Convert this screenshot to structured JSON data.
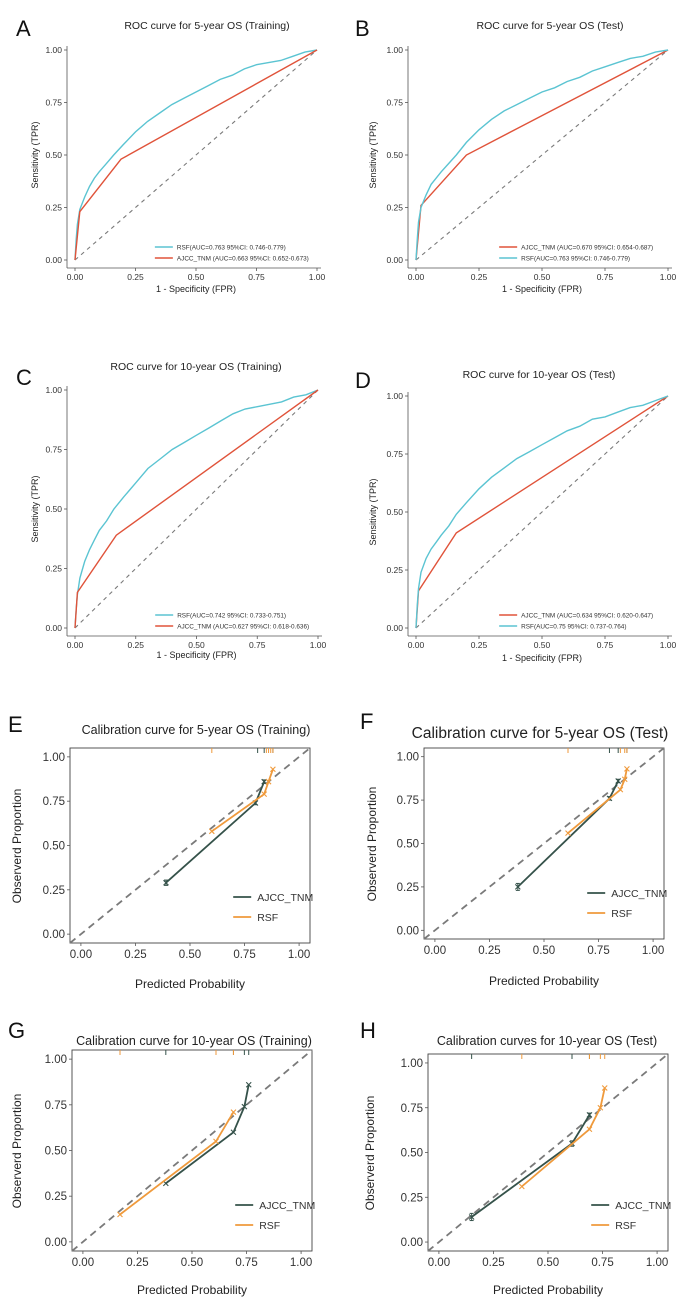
{
  "colors": {
    "rsf_roc": "#5bc4d2",
    "tnm_roc": "#e0533a",
    "tnm_cal": "#35524a",
    "rsf_cal": "#ef9a3c",
    "reference": "#7a7a7a"
  },
  "chart_data": [
    {
      "id": "roc_5_train",
      "panel": "A",
      "type": "line",
      "title": "ROC curve for 5-year OS (Training)",
      "xlabel": "1 - Specificity (FPR)",
      "ylabel": "Sensitivity (TPR)",
      "xlim": [
        0,
        1
      ],
      "ylim": [
        0,
        1
      ],
      "xticks": [
        "0.00",
        "0.25",
        "0.50",
        "0.75",
        "1.00"
      ],
      "yticks": [
        "0.00",
        "0.25",
        "0.50",
        "0.75",
        "1.00"
      ],
      "legend_position": "bottom-right",
      "grid": false,
      "series": [
        {
          "name": "RSF(AUC=0.763 95%CI: 0.746-0.779)",
          "color_key": "rsf_roc",
          "x": [
            0,
            0.005,
            0.01,
            0.02,
            0.04,
            0.06,
            0.08,
            0.1,
            0.13,
            0.16,
            0.2,
            0.25,
            0.3,
            0.35,
            0.4,
            0.45,
            0.5,
            0.55,
            0.6,
            0.65,
            0.7,
            0.75,
            0.8,
            0.85,
            0.9,
            0.95,
            1.0
          ],
          "y": [
            0,
            0.1,
            0.17,
            0.24,
            0.3,
            0.35,
            0.39,
            0.42,
            0.46,
            0.5,
            0.55,
            0.61,
            0.66,
            0.7,
            0.74,
            0.77,
            0.8,
            0.83,
            0.86,
            0.88,
            0.91,
            0.93,
            0.94,
            0.95,
            0.97,
            0.99,
            1.0
          ]
        },
        {
          "name": "AJCC_TNM (AUC=0.663 95%CI: 0.652-0.673)",
          "color_key": "tnm_roc",
          "x": [
            0,
            0.02,
            0.19,
            1.0
          ],
          "y": [
            0,
            0.23,
            0.48,
            1.0
          ]
        }
      ]
    },
    {
      "id": "roc_5_test",
      "panel": "B",
      "type": "line",
      "title": "ROC curve for 5-year OS (Test)",
      "xlabel": "1 - Specificity (FPR)",
      "ylabel": "Sensitivity (TPR)",
      "xlim": [
        0,
        1
      ],
      "ylim": [
        0,
        1
      ],
      "xticks": [
        "0.00",
        "0.25",
        "0.50",
        "0.75",
        "1.00"
      ],
      "yticks": [
        "0.00",
        "0.25",
        "0.50",
        "0.75",
        "1.00"
      ],
      "legend_position": "bottom-right",
      "grid": false,
      "series": [
        {
          "name": "AJCC_TNM (AUC=0.670 95%CI: 0.654-0.687)",
          "color_key": "tnm_roc",
          "x": [
            0,
            0.02,
            0.2,
            1.0
          ],
          "y": [
            0,
            0.26,
            0.5,
            1.0
          ]
        },
        {
          "name": "RSF(AUC=0.763 95%CI: 0.746-0.779)",
          "color_key": "rsf_roc",
          "x": [
            0,
            0.005,
            0.01,
            0.02,
            0.04,
            0.06,
            0.08,
            0.1,
            0.13,
            0.16,
            0.2,
            0.25,
            0.3,
            0.35,
            0.4,
            0.45,
            0.5,
            0.55,
            0.6,
            0.65,
            0.7,
            0.75,
            0.8,
            0.85,
            0.9,
            0.95,
            1.0
          ],
          "y": [
            0,
            0.1,
            0.18,
            0.25,
            0.31,
            0.36,
            0.39,
            0.42,
            0.46,
            0.5,
            0.56,
            0.62,
            0.67,
            0.71,
            0.74,
            0.77,
            0.8,
            0.82,
            0.85,
            0.87,
            0.9,
            0.92,
            0.94,
            0.96,
            0.97,
            0.99,
            1.0
          ]
        }
      ]
    },
    {
      "id": "roc_10_train",
      "panel": "C",
      "type": "line",
      "title": "ROC curve for 10-year OS (Training)",
      "xlabel": "1 - Specificity (FPR)",
      "ylabel": "Sensitivity (TPR)",
      "xlim": [
        0,
        1
      ],
      "ylim": [
        0,
        1
      ],
      "xticks": [
        "0.00",
        "0.25",
        "0.50",
        "0.75",
        "1.00"
      ],
      "yticks": [
        "0.00",
        "0.25",
        "0.50",
        "0.75",
        "1.00"
      ],
      "legend_position": "bottom-right",
      "grid": false,
      "series": [
        {
          "name": "RSF(AUC=0.742 95%CI: 0.733-0.751)",
          "color_key": "rsf_roc",
          "x": [
            0,
            0.005,
            0.01,
            0.02,
            0.04,
            0.06,
            0.08,
            0.1,
            0.13,
            0.16,
            0.2,
            0.25,
            0.3,
            0.35,
            0.4,
            0.45,
            0.5,
            0.55,
            0.6,
            0.65,
            0.7,
            0.75,
            0.8,
            0.85,
            0.9,
            0.95,
            1.0
          ],
          "y": [
            0,
            0.08,
            0.14,
            0.21,
            0.28,
            0.33,
            0.37,
            0.41,
            0.45,
            0.5,
            0.55,
            0.61,
            0.67,
            0.71,
            0.75,
            0.78,
            0.81,
            0.84,
            0.87,
            0.9,
            0.92,
            0.93,
            0.94,
            0.95,
            0.97,
            0.98,
            1.0
          ]
        },
        {
          "name": "AJCC_TNM (AUC=0.627 95%CI: 0.618-0.636)",
          "color_key": "tnm_roc",
          "x": [
            0,
            0.01,
            0.17,
            1.0
          ],
          "y": [
            0,
            0.15,
            0.39,
            1.0
          ]
        }
      ]
    },
    {
      "id": "roc_10_test",
      "panel": "D",
      "type": "line",
      "title": "ROC curve for 10-year OS (Test)",
      "xlabel": "1 - Specificity (FPR)",
      "ylabel": "Sensitivity (TPR)",
      "xlim": [
        0,
        1
      ],
      "ylim": [
        0,
        1
      ],
      "xticks": [
        "0.00",
        "0.25",
        "0.50",
        "0.75",
        "1.00"
      ],
      "yticks": [
        "0.00",
        "0.25",
        "0.50",
        "0.75",
        "1.00"
      ],
      "legend_position": "bottom-right",
      "grid": false,
      "series": [
        {
          "name": "AJCC_TNM (AUC=0.634 95%CI: 0.620-0.647)",
          "color_key": "tnm_roc",
          "x": [
            0,
            0.01,
            0.16,
            1.0
          ],
          "y": [
            0,
            0.16,
            0.41,
            1.0
          ]
        },
        {
          "name": "RSF(AUC=0.75 95%CI: 0.737-0.764)",
          "color_key": "rsf_roc",
          "x": [
            0,
            0.005,
            0.01,
            0.02,
            0.04,
            0.06,
            0.08,
            0.1,
            0.13,
            0.16,
            0.2,
            0.25,
            0.3,
            0.35,
            0.4,
            0.45,
            0.5,
            0.55,
            0.6,
            0.65,
            0.7,
            0.75,
            0.8,
            0.85,
            0.9,
            0.95,
            1.0
          ],
          "y": [
            0,
            0.1,
            0.17,
            0.24,
            0.3,
            0.34,
            0.37,
            0.4,
            0.44,
            0.49,
            0.54,
            0.6,
            0.65,
            0.69,
            0.73,
            0.76,
            0.79,
            0.82,
            0.85,
            0.87,
            0.9,
            0.91,
            0.93,
            0.95,
            0.96,
            0.98,
            1.0
          ]
        }
      ]
    },
    {
      "id": "cal_5_train",
      "panel": "E",
      "type": "line",
      "title": "Calibration curve for 5-year OS (Training)",
      "xlabel": "Predicted Probability",
      "ylabel": "Observerd Proportion",
      "xlim": [
        -0.05,
        1.05
      ],
      "ylim": [
        -0.05,
        1.05
      ],
      "xticks": [
        "0.00",
        "0.25",
        "0.50",
        "0.75",
        "1.00"
      ],
      "yticks": [
        "0.00",
        "0.25",
        "0.50",
        "0.75",
        "1.00"
      ],
      "legend_position": "bottom-right",
      "grid": false,
      "series": [
        {
          "name": "AJCC_TNM",
          "color_key": "tnm_cal",
          "x": [
            0.39,
            0.8,
            0.84
          ],
          "y": [
            0.29,
            0.74,
            0.86
          ],
          "err": [
            0.015,
            0.01,
            0.01
          ],
          "rug": [
            0.81,
            0.84,
            0.88
          ]
        },
        {
          "name": "RSF",
          "color_key": "rsf_cal",
          "x": [
            0.6,
            0.84,
            0.86,
            0.88
          ],
          "y": [
            0.58,
            0.79,
            0.86,
            0.93
          ],
          "rug": [
            0.6,
            0.85,
            0.86,
            0.87,
            0.88
          ]
        }
      ]
    },
    {
      "id": "cal_5_test",
      "panel": "F",
      "type": "line",
      "title": "Calibration curve for 5-year OS (Test)",
      "xlabel": "Predicted Probability",
      "ylabel": "Observerd Proportion",
      "xlim": [
        -0.05,
        1.05
      ],
      "ylim": [
        -0.05,
        1.05
      ],
      "xticks": [
        "0.00",
        "0.25",
        "0.50",
        "0.75",
        "1.00"
      ],
      "yticks": [
        "0.00",
        "0.25",
        "0.50",
        "0.75",
        "1.00"
      ],
      "legend_position": "bottom-right",
      "grid": false,
      "series": [
        {
          "name": "AJCC_TNM",
          "color_key": "tnm_cal",
          "x": [
            0.38,
            0.8,
            0.84
          ],
          "y": [
            0.25,
            0.76,
            0.86
          ],
          "err": [
            0.02,
            0.01,
            0.01
          ],
          "rug": [
            0.8,
            0.84,
            0.88
          ]
        },
        {
          "name": "RSF",
          "color_key": "rsf_cal",
          "x": [
            0.61,
            0.85,
            0.87,
            0.88
          ],
          "y": [
            0.56,
            0.81,
            0.87,
            0.93
          ],
          "rug": [
            0.61,
            0.85,
            0.87,
            0.88
          ]
        }
      ]
    },
    {
      "id": "cal_10_train",
      "panel": "G",
      "type": "line",
      "title": "Calibration curve for 10-year OS (Training)",
      "xlabel": "Predicted Probability",
      "ylabel": "Observerd Proportion",
      "xlim": [
        -0.05,
        1.05
      ],
      "ylim": [
        -0.05,
        1.05
      ],
      "xticks": [
        "0.00",
        "0.25",
        "0.50",
        "0.75",
        "1.00"
      ],
      "yticks": [
        "0.00",
        "0.25",
        "0.50",
        "0.75",
        "1.00"
      ],
      "legend_position": "bottom-right",
      "grid": false,
      "series": [
        {
          "name": "AJCC_TNM",
          "color_key": "tnm_cal",
          "x": [
            0.38,
            0.69,
            0.74,
            0.76
          ],
          "y": [
            0.32,
            0.6,
            0.74,
            0.86
          ],
          "rug": [
            0.38,
            0.69,
            0.74,
            0.76
          ]
        },
        {
          "name": "RSF",
          "color_key": "rsf_cal",
          "x": [
            0.17,
            0.61,
            0.69
          ],
          "y": [
            0.15,
            0.55,
            0.71
          ],
          "rug": [
            0.17,
            0.61,
            0.69
          ]
        }
      ]
    },
    {
      "id": "cal_10_test",
      "panel": "H",
      "type": "line",
      "title": "Calibration curves for 10-year OS (Test)",
      "xlabel": "Predicted Probability",
      "ylabel": "Observerd Proportion",
      "xlim": [
        -0.05,
        1.05
      ],
      "ylim": [
        -0.05,
        1.05
      ],
      "xticks": [
        "0.00",
        "0.25",
        "0.50",
        "0.75",
        "1.00"
      ],
      "yticks": [
        "0.00",
        "0.25",
        "0.50",
        "0.75",
        "1.00"
      ],
      "legend_position": "bottom-right",
      "grid": false,
      "series": [
        {
          "name": "AJCC_TNM",
          "color_key": "tnm_cal",
          "x": [
            0.15,
            0.61,
            0.69
          ],
          "y": [
            0.14,
            0.55,
            0.71
          ],
          "err": [
            0.02,
            0.015,
            0.01
          ],
          "rug": [
            0.15,
            0.61,
            0.69
          ]
        },
        {
          "name": "RSF",
          "color_key": "rsf_cal",
          "x": [
            0.38,
            0.69,
            0.74,
            0.76
          ],
          "y": [
            0.31,
            0.63,
            0.75,
            0.86
          ],
          "rug": [
            0.38,
            0.69,
            0.74,
            0.76
          ]
        }
      ]
    }
  ]
}
